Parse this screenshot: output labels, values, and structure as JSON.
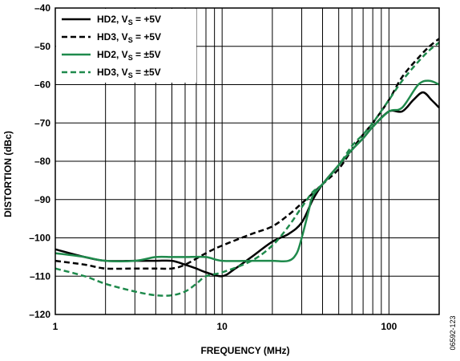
{
  "figure_id": "06592-123",
  "chart_data": {
    "type": "line",
    "xlabel": "FREQUENCY (MHz)",
    "ylabel": "DISTORTION (dBc)",
    "xscale": "log",
    "xlim": [
      1,
      200
    ],
    "ylim": [
      -120,
      -40
    ],
    "x_tick_labels": [
      "1",
      "10",
      "100"
    ],
    "x_tick_values": [
      1,
      10,
      100
    ],
    "y_tick_values": [
      -120,
      -110,
      -100,
      -90,
      -80,
      -70,
      -60,
      -50,
      -40
    ],
    "y_tick_labels": [
      "–120",
      "–110",
      "–100",
      "–90",
      "–80",
      "–70",
      "–60",
      "–50",
      "–40"
    ],
    "grid": true,
    "legend_position": "top-left",
    "series": [
      {
        "label_main": "HD2, V",
        "label_sub": "S",
        "label_rest": " = +5V",
        "color": "#000000",
        "dash": "solid",
        "points": [
          [
            1,
            -103
          ],
          [
            1.5,
            -105
          ],
          [
            2,
            -106
          ],
          [
            3,
            -106
          ],
          [
            4,
            -106
          ],
          [
            5,
            -106
          ],
          [
            6,
            -107
          ],
          [
            7,
            -108
          ],
          [
            8,
            -109
          ],
          [
            10,
            -110
          ],
          [
            12,
            -108
          ],
          [
            15,
            -105
          ],
          [
            20,
            -101
          ],
          [
            25,
            -99
          ],
          [
            30,
            -96
          ],
          [
            35,
            -90
          ],
          [
            40,
            -86
          ],
          [
            50,
            -81
          ],
          [
            60,
            -77
          ],
          [
            70,
            -74
          ],
          [
            80,
            -71
          ],
          [
            100,
            -67
          ],
          [
            120,
            -67
          ],
          [
            140,
            -64
          ],
          [
            160,
            -62
          ],
          [
            180,
            -64
          ],
          [
            200,
            -66
          ]
        ]
      },
      {
        "label_main": "HD3, V",
        "label_sub": "S",
        "label_rest": " = +5V",
        "color": "#000000",
        "dash": "dashed",
        "points": [
          [
            1,
            -106
          ],
          [
            1.5,
            -107
          ],
          [
            2,
            -108
          ],
          [
            3,
            -108
          ],
          [
            4,
            -108
          ],
          [
            5,
            -108
          ],
          [
            6,
            -107
          ],
          [
            8,
            -104
          ],
          [
            10,
            -102
          ],
          [
            15,
            -99
          ],
          [
            20,
            -97
          ],
          [
            25,
            -94
          ],
          [
            30,
            -91
          ],
          [
            40,
            -86
          ],
          [
            50,
            -82
          ],
          [
            60,
            -77
          ],
          [
            70,
            -73
          ],
          [
            80,
            -70
          ],
          [
            100,
            -64
          ],
          [
            120,
            -58
          ],
          [
            150,
            -53
          ],
          [
            175,
            -50
          ],
          [
            200,
            -48
          ]
        ]
      },
      {
        "label_main": "HD2, V",
        "label_sub": "S",
        "label_rest": " = ±5V",
        "color": "#1f8a4c",
        "dash": "solid",
        "points": [
          [
            1,
            -104
          ],
          [
            1.5,
            -105
          ],
          [
            2,
            -106
          ],
          [
            3,
            -106
          ],
          [
            4,
            -105
          ],
          [
            5,
            -105
          ],
          [
            6,
            -105
          ],
          [
            8,
            -105
          ],
          [
            10,
            -106
          ],
          [
            15,
            -106
          ],
          [
            20,
            -106
          ],
          [
            25,
            -106
          ],
          [
            28,
            -104
          ],
          [
            30,
            -100
          ],
          [
            33,
            -93
          ],
          [
            35,
            -89
          ],
          [
            40,
            -86
          ],
          [
            50,
            -81
          ],
          [
            60,
            -77
          ],
          [
            70,
            -74
          ],
          [
            80,
            -71
          ],
          [
            100,
            -67
          ],
          [
            120,
            -66
          ],
          [
            150,
            -60
          ],
          [
            175,
            -59
          ],
          [
            200,
            -60
          ]
        ]
      },
      {
        "label_main": "HD3, V",
        "label_sub": "S",
        "label_rest": " = ±5V",
        "color": "#1f8a4c",
        "dash": "dashed",
        "points": [
          [
            1,
            -108
          ],
          [
            1.5,
            -110
          ],
          [
            2,
            -112
          ],
          [
            3,
            -114
          ],
          [
            4,
            -115
          ],
          [
            5,
            -115
          ],
          [
            6,
            -114
          ],
          [
            7,
            -112
          ],
          [
            8,
            -110
          ],
          [
            10,
            -109
          ],
          [
            15,
            -106
          ],
          [
            20,
            -102
          ],
          [
            25,
            -97
          ],
          [
            30,
            -92
          ],
          [
            35,
            -88
          ],
          [
            40,
            -86
          ],
          [
            50,
            -81
          ],
          [
            60,
            -76
          ],
          [
            70,
            -73
          ],
          [
            80,
            -70
          ],
          [
            100,
            -64
          ],
          [
            120,
            -59
          ],
          [
            150,
            -54
          ],
          [
            175,
            -51
          ],
          [
            200,
            -49
          ]
        ]
      }
    ]
  }
}
